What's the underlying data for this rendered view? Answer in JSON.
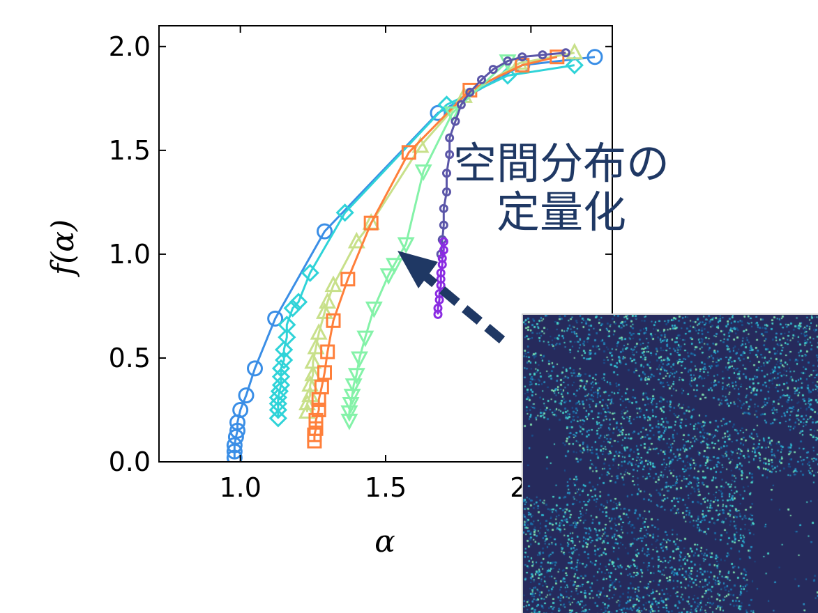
{
  "annotation": {
    "line1": "空間分布の",
    "line2": "定量化"
  },
  "colors": {
    "annotation_text": "#1f3864",
    "arrow": "#1f3864",
    "inset_background": "#262a5c"
  },
  "chart_data": {
    "type": "line",
    "xlabel": "α",
    "ylabel": "f(α)",
    "xlim": [
      0.72,
      2.28
    ],
    "ylim": [
      0.0,
      2.1
    ],
    "xticks": [
      1.0,
      1.5,
      2.0
    ],
    "yticks": [
      0.0,
      0.5,
      1.0,
      1.5,
      2.0
    ],
    "xtick_labels": [
      "1.0",
      "1.5",
      "2.0"
    ],
    "ytick_labels": [
      "0.0",
      "0.5",
      "1.0",
      "1.5",
      "2.0"
    ],
    "grid": false,
    "series": [
      {
        "marker": "circle",
        "color": "#3a8ee6",
        "points": [
          [
            0.98,
            0.02
          ],
          [
            0.98,
            0.05
          ],
          [
            0.98,
            0.08
          ],
          [
            0.985,
            0.12
          ],
          [
            0.99,
            0.15
          ],
          [
            0.99,
            0.19
          ],
          [
            1.0,
            0.25
          ],
          [
            1.02,
            0.32
          ],
          [
            1.05,
            0.45
          ],
          [
            1.12,
            0.69
          ],
          [
            1.29,
            1.11
          ],
          [
            1.68,
            1.68
          ],
          [
            1.97,
            1.91
          ],
          [
            2.22,
            1.95
          ]
        ]
      },
      {
        "marker": "diamond",
        "color": "#2fd3d8",
        "points": [
          [
            1.13,
            0.21
          ],
          [
            1.13,
            0.25
          ],
          [
            1.13,
            0.28
          ],
          [
            1.13,
            0.31
          ],
          [
            1.135,
            0.34
          ],
          [
            1.14,
            0.37
          ],
          [
            1.14,
            0.41
          ],
          [
            1.14,
            0.45
          ],
          [
            1.15,
            0.49
          ],
          [
            1.15,
            0.54
          ],
          [
            1.16,
            0.6
          ],
          [
            1.16,
            0.66
          ],
          [
            1.18,
            0.74
          ],
          [
            1.2,
            0.77
          ],
          [
            1.24,
            0.91
          ],
          [
            1.36,
            1.2
          ],
          [
            1.71,
            1.72
          ],
          [
            1.92,
            1.86
          ],
          [
            2.15,
            1.91
          ]
        ]
      },
      {
        "marker": "triangle-up",
        "color": "#c8e08a",
        "points": [
          [
            1.23,
            0.24
          ],
          [
            1.23,
            0.28
          ],
          [
            1.24,
            0.32
          ],
          [
            1.24,
            0.37
          ],
          [
            1.25,
            0.42
          ],
          [
            1.25,
            0.48
          ],
          [
            1.26,
            0.55
          ],
          [
            1.27,
            0.62
          ],
          [
            1.29,
            0.72
          ],
          [
            1.3,
            0.77
          ],
          [
            1.32,
            0.85
          ],
          [
            1.4,
            1.06
          ],
          [
            1.45,
            1.15
          ],
          [
            1.62,
            1.52
          ],
          [
            1.77,
            1.76
          ],
          [
            1.96,
            1.92
          ],
          [
            2.15,
            1.97
          ]
        ]
      },
      {
        "marker": "square",
        "color": "#ff7f3a",
        "points": [
          [
            1.255,
            0.1
          ],
          [
            1.255,
            0.13
          ],
          [
            1.26,
            0.16
          ],
          [
            1.26,
            0.2
          ],
          [
            1.27,
            0.25
          ],
          [
            1.27,
            0.3
          ],
          [
            1.28,
            0.36
          ],
          [
            1.29,
            0.43
          ],
          [
            1.3,
            0.53
          ],
          [
            1.32,
            0.68
          ],
          [
            1.37,
            0.88
          ],
          [
            1.45,
            1.15
          ],
          [
            1.58,
            1.49
          ],
          [
            1.79,
            1.79
          ],
          [
            1.97,
            1.91
          ],
          [
            2.09,
            1.95
          ]
        ]
      },
      {
        "marker": "triangle-down",
        "color": "#84f2a8",
        "points": [
          [
            1.375,
            0.2
          ],
          [
            1.375,
            0.24
          ],
          [
            1.38,
            0.28
          ],
          [
            1.385,
            0.32
          ],
          [
            1.39,
            0.37
          ],
          [
            1.4,
            0.42
          ],
          [
            1.41,
            0.5
          ],
          [
            1.43,
            0.6
          ],
          [
            1.46,
            0.74
          ],
          [
            1.51,
            0.9
          ],
          [
            1.53,
            0.95
          ],
          [
            1.57,
            1.05
          ],
          [
            1.63,
            1.4
          ],
          [
            1.73,
            1.68
          ],
          [
            1.92,
            1.93
          ]
        ]
      },
      {
        "marker": "dot",
        "color": "#5b56a8",
        "points": [
          [
            1.69,
            1.0
          ],
          [
            1.695,
            1.07
          ],
          [
            1.7,
            1.14
          ],
          [
            1.7,
            1.22
          ],
          [
            1.71,
            1.3
          ],
          [
            1.71,
            1.39
          ],
          [
            1.72,
            1.48
          ],
          [
            1.72,
            1.56
          ],
          [
            1.74,
            1.64
          ],
          [
            1.76,
            1.72
          ],
          [
            1.79,
            1.78
          ],
          [
            1.83,
            1.84
          ],
          [
            1.87,
            1.89
          ],
          [
            1.92,
            1.93
          ],
          [
            1.97,
            1.95
          ],
          [
            2.04,
            1.96
          ],
          [
            2.12,
            1.97
          ]
        ]
      },
      {
        "marker": "dot",
        "color": "#8a2be2",
        "points": [
          [
            1.68,
            0.71
          ],
          [
            1.68,
            0.74
          ],
          [
            1.685,
            0.78
          ],
          [
            1.685,
            0.81
          ],
          [
            1.69,
            0.85
          ],
          [
            1.69,
            0.88
          ],
          [
            1.69,
            0.91
          ],
          [
            1.695,
            0.95
          ],
          [
            1.695,
            0.98
          ],
          [
            1.7,
            1.02
          ],
          [
            1.7,
            1.06
          ]
        ]
      }
    ]
  }
}
